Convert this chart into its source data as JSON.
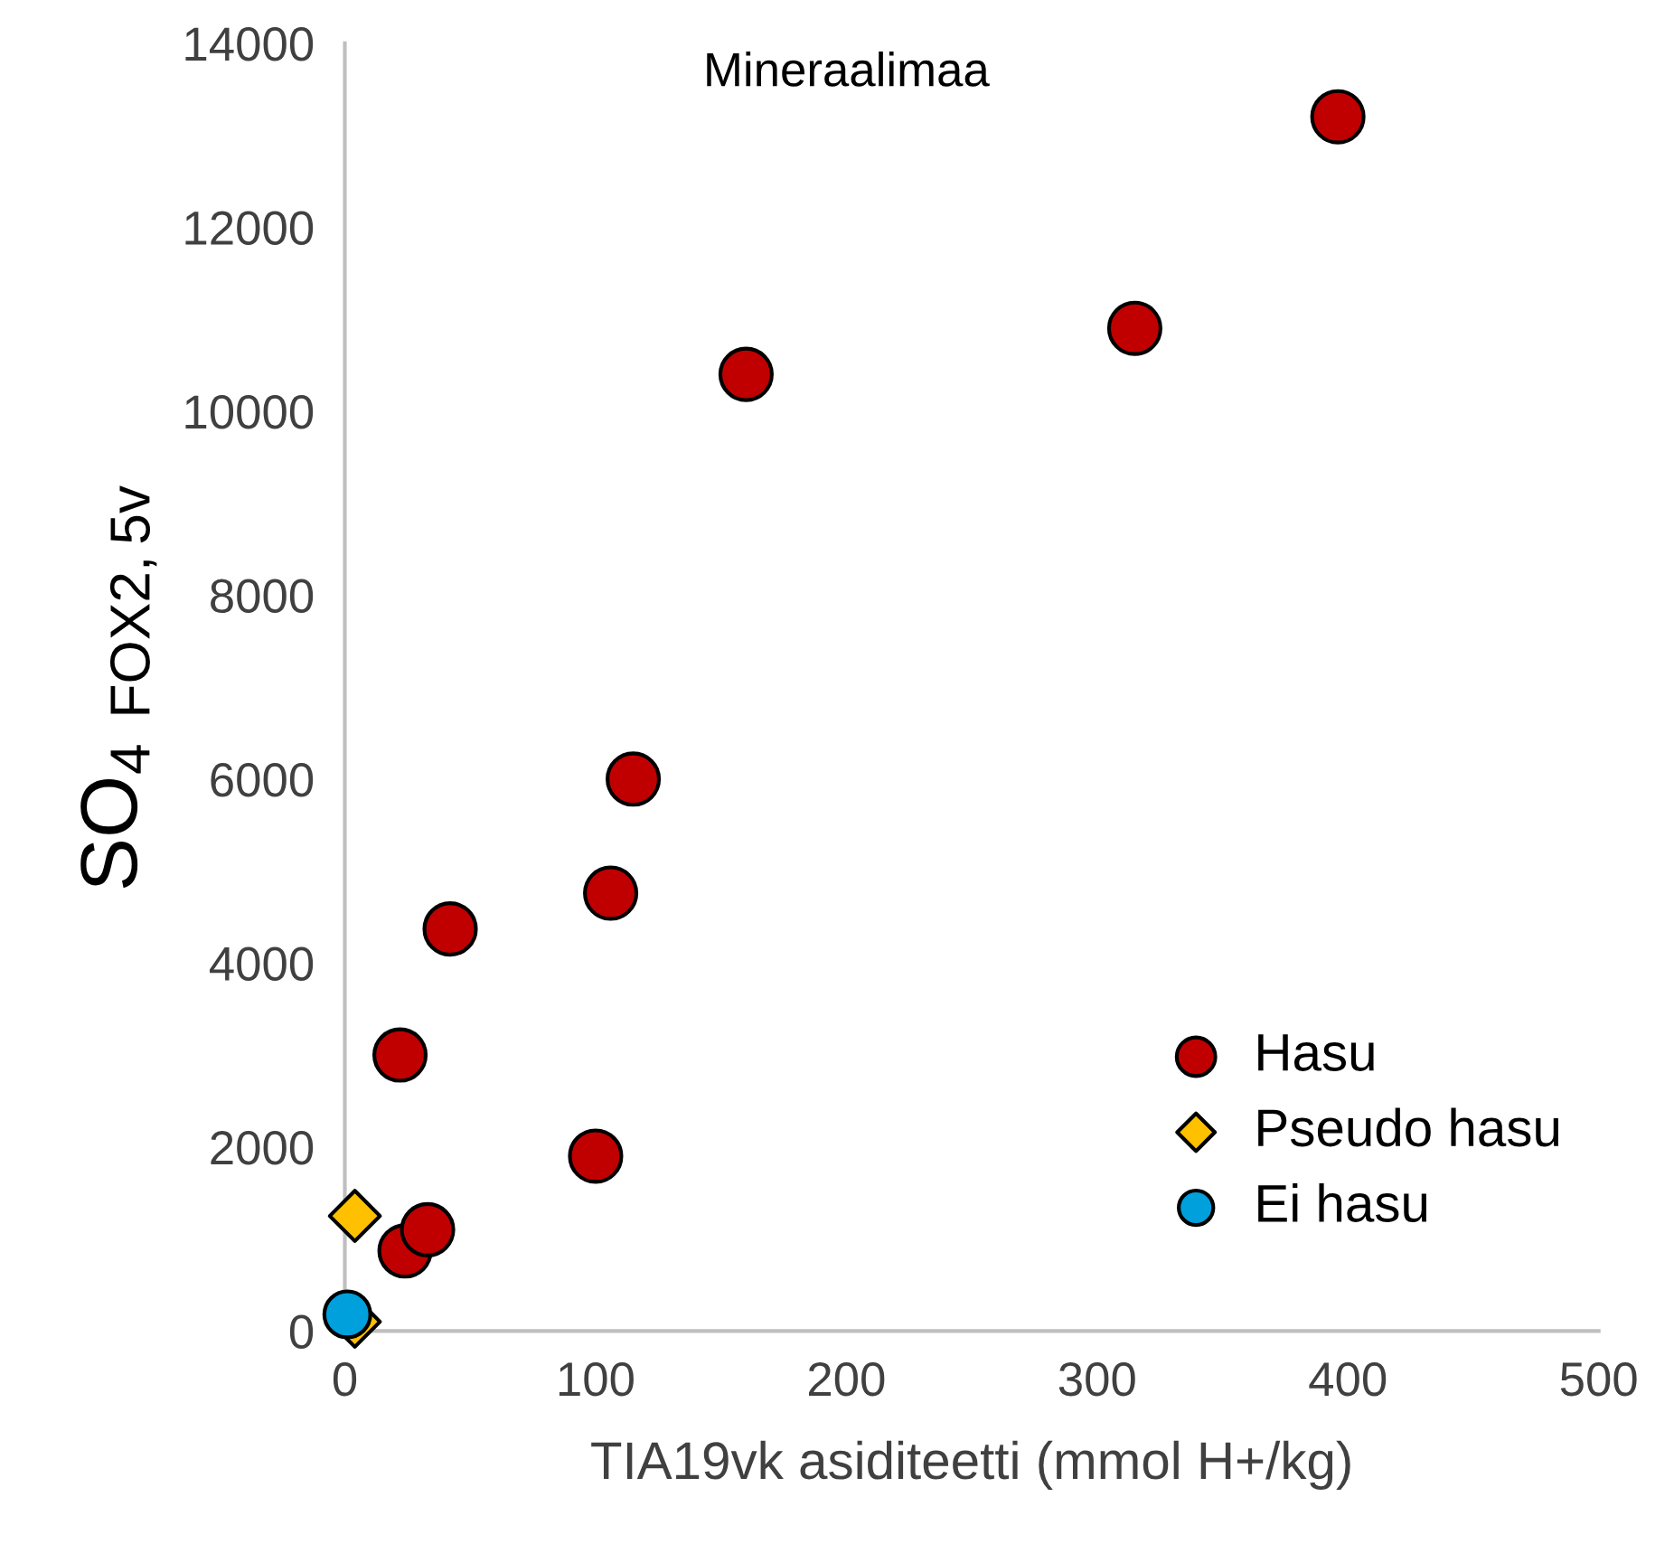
{
  "chart_data": {
    "type": "scatter",
    "title": "Mineraalimaa",
    "xlabel": "TIA19vk asiditeetti (mmol H+/kg)",
    "ylabel": "SO$_{4}$ $_{FOX2,5v}$",
    "xlim": [
      0,
      500
    ],
    "xticks": [
      0,
      100,
      200,
      300,
      400,
      500
    ],
    "ylim": [
      0,
      14000
    ],
    "yticks": [
      0,
      2000,
      4000,
      6000,
      8000,
      10000,
      12000,
      14000
    ],
    "grid": false,
    "legend": "bottom right",
    "series": [
      {
        "name": "Hasu",
        "color": "#c00000",
        "marker": "circle",
        "x": [
          22,
          24,
          33,
          42,
          100,
          106,
          115,
          160,
          315,
          396
        ],
        "values": [
          3000,
          870,
          1100,
          4370,
          1900,
          4760,
          6000,
          10400,
          10900,
          13200
        ]
      },
      {
        "name": "Pseudo hasu",
        "color": "#ffc000",
        "marker": "diamond",
        "x": [
          4,
          4
        ],
        "values": [
          1250,
          100
        ]
      },
      {
        "name": "Ei hasu",
        "color": "#00a0dc",
        "marker": "circle",
        "x": [
          1
        ],
        "values": [
          180
        ]
      }
    ]
  }
}
